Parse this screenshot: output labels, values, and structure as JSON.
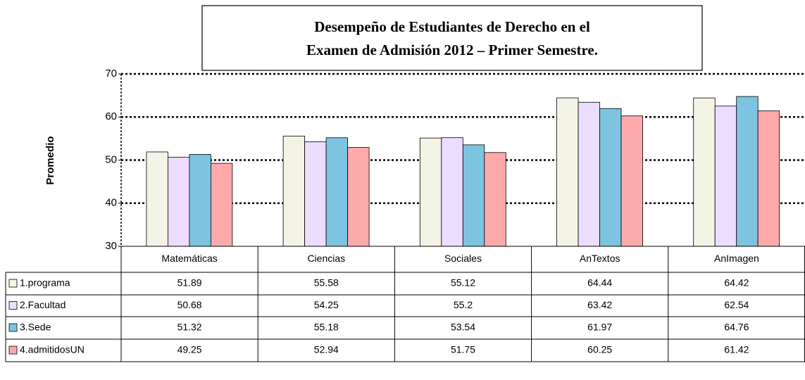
{
  "chart_data": {
    "type": "bar",
    "title": [
      "Desempeño de Estudiantes de Derecho en el",
      "Examen de Admisión 2012 – Primer  Semestre."
    ],
    "y_label": "Promedio",
    "categories": [
      "Matemáticas",
      "Ciencias",
      "Sociales",
      "AnTextos",
      "AnImagen"
    ],
    "series": [
      {
        "name": "1.programa",
        "color": "#f4f4e6",
        "values": [
          51.89,
          55.58,
          55.12,
          64.44,
          64.42
        ]
      },
      {
        "name": "2.Facultad",
        "color": "#ecdcff",
        "values": [
          50.68,
          54.25,
          55.2,
          63.42,
          62.54
        ]
      },
      {
        "name": "3.Sede",
        "color": "#7cc4e0",
        "values": [
          51.32,
          55.18,
          53.54,
          61.97,
          64.76
        ]
      },
      {
        "name": "4.admitidosUN",
        "color": "#ffaaaa",
        "values": [
          49.25,
          52.94,
          51.75,
          60.25,
          61.42
        ]
      }
    ],
    "ylim": [
      30,
      70
    ],
    "yticks": [
      30,
      40,
      50,
      60,
      70
    ],
    "grid": true
  }
}
